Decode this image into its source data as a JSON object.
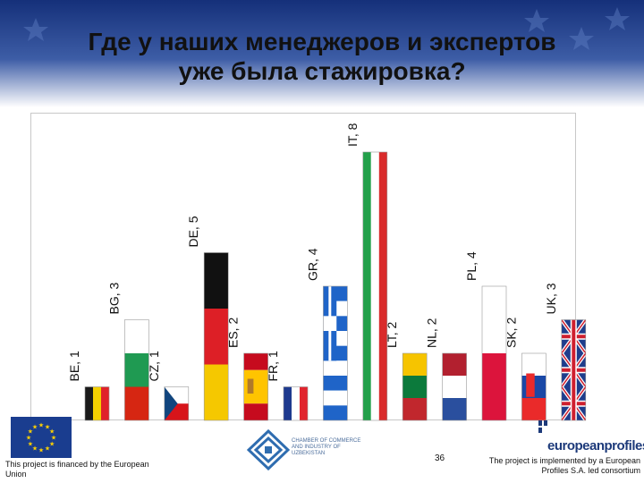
{
  "slide": {
    "title_line1": "Где у наших менеджеров и экспертов",
    "title_line2": "уже была стажировка?",
    "page_number": "36",
    "funding_note": "This project is financed by the European Union",
    "chamber_name": "CHAMBER OF COMMERCE AND INDUSTRY OF UZBEKISTAN",
    "ep_brand": "europeanprofiles",
    "ep_note": "The project is implemented by a European Profiles S.A. led consortium"
  },
  "colors": {
    "banner": "#1e3f8a",
    "title_text": "#111111",
    "eu_blue": "#1a3d8f",
    "eu_star": "#ffd200"
  },
  "chart_data": {
    "type": "bar",
    "title": "",
    "xlabel": "",
    "ylabel": "",
    "ylim": [
      0,
      8
    ],
    "grid": false,
    "legend": "none",
    "categories": [
      "BE",
      "BG",
      "CZ",
      "DE",
      "ES",
      "FR",
      "GR",
      "IT",
      "LT",
      "NL",
      "PL",
      "SK",
      "UK"
    ],
    "values": [
      1,
      3,
      1,
      5,
      2,
      1,
      4,
      8,
      2,
      2,
      4,
      2,
      3
    ],
    "data_labels": [
      "BE, 1",
      "BG, 3",
      "CZ, 1",
      "DE, 5",
      "ES, 2",
      "FR, 1",
      "GR, 4",
      "IT, 8",
      "LT, 2",
      "NL, 2",
      "PL, 4",
      "SK, 2",
      "UK, 3"
    ],
    "bar_fill": [
      "flag-be",
      "flag-bg",
      "flag-cz",
      "flag-de",
      "flag-es",
      "flag-fr",
      "flag-gr",
      "flag-it",
      "flag-lt",
      "flag-nl",
      "flag-pl",
      "flag-sk",
      "flag-uk"
    ]
  }
}
